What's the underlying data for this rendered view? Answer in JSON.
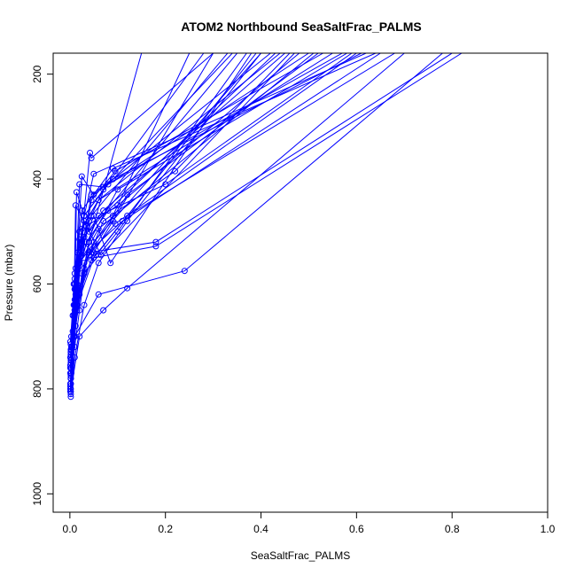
{
  "chart_data": {
    "type": "line",
    "title": "ATOM2 Northbound SeaSaltFrac_PALMS",
    "xlabel": "SeaSaltFrac_PALMS",
    "ylabel": "Pressure (mbar)",
    "xlim": [
      -0.035,
      1.0
    ],
    "ylim": [
      1035,
      160
    ],
    "y_inverted": true,
    "x_ticks": [
      "0.0",
      "0.2",
      "0.4",
      "0.6",
      "0.8",
      "1.0"
    ],
    "y_ticks": [
      "200",
      "400",
      "600",
      "800",
      "1000"
    ],
    "series_color": "#0000ff",
    "grid": false,
    "series": [
      {
        "x": [
          0.002,
          0.01,
          0.03,
          0.06,
          0.12,
          0.4
        ],
        "y": [
          810,
          740,
          640,
          560,
          480,
          160
        ]
      },
      {
        "x": [
          0.002,
          0.01,
          0.02,
          0.04,
          0.15
        ],
        "y": [
          780,
          720,
          650,
          520,
          160
        ]
      },
      {
        "x": [
          0.003,
          0.008,
          0.02,
          0.05,
          0.09,
          0.3
        ],
        "y": [
          760,
          700,
          620,
          540,
          480,
          160
        ]
      },
      {
        "x": [
          0.001,
          0.005,
          0.015,
          0.042,
          0.045,
          0.3
        ],
        "y": [
          800,
          720,
          600,
          350,
          360,
          160
        ]
      },
      {
        "x": [
          0.002,
          0.01,
          0.025,
          0.07,
          0.22,
          0.46
        ],
        "y": [
          790,
          700,
          580,
          480,
          385,
          160
        ]
      },
      {
        "x": [
          0.001,
          0.006,
          0.03,
          0.12,
          0.52
        ],
        "y": [
          805,
          690,
          560,
          430,
          160
        ]
      },
      {
        "x": [
          0.002,
          0.012,
          0.04,
          0.1,
          0.58
        ],
        "y": [
          780,
          650,
          520,
          420,
          160
        ]
      },
      {
        "x": [
          0.003,
          0.015,
          0.03,
          0.05,
          0.62
        ],
        "y": [
          770,
          640,
          470,
          390,
          160
        ]
      },
      {
        "x": [
          0.002,
          0.01,
          0.02,
          0.06,
          0.55
        ],
        "y": [
          750,
          610,
          500,
          440,
          160
        ]
      },
      {
        "x": [
          0.001,
          0.008,
          0.025,
          0.09,
          0.64
        ],
        "y": [
          740,
          600,
          460,
          380,
          160
        ]
      },
      {
        "x": [
          0.002,
          0.01,
          0.03,
          0.08,
          0.5
        ],
        "y": [
          730,
          580,
          470,
          410,
          160
        ]
      },
      {
        "x": [
          0.003,
          0.02,
          0.045,
          0.09,
          0.61
        ],
        "y": [
          725,
          560,
          430,
          400,
          160
        ]
      },
      {
        "x": [
          0.002,
          0.012,
          0.035,
          0.1,
          0.48
        ],
        "y": [
          715,
          570,
          490,
          450,
          160
        ]
      },
      {
        "x": [
          0.001,
          0.01,
          0.03,
          0.07,
          0.45
        ],
        "y": [
          710,
          590,
          510,
          460,
          160
        ]
      },
      {
        "x": [
          0.003,
          0.018,
          0.06,
          0.2,
          0.59
        ],
        "y": [
          700,
          560,
          470,
          410,
          160
        ]
      },
      {
        "x": [
          0.002,
          0.01,
          0.04,
          0.18,
          0.8
        ],
        "y": [
          790,
          650,
          540,
          520,
          160
        ]
      },
      {
        "x": [
          0.002,
          0.015,
          0.05,
          0.18,
          0.82
        ],
        "y": [
          780,
          640,
          550,
          528,
          160
        ]
      },
      {
        "x": [
          0.001,
          0.01,
          0.06,
          0.24,
          0.78
        ],
        "y": [
          795,
          700,
          620,
          575,
          160
        ]
      },
      {
        "x": [
          0.002,
          0.02,
          0.07,
          0.12,
          0.7
        ],
        "y": [
          805,
          700,
          650,
          608,
          160
        ]
      },
      {
        "x": [
          0.003,
          0.01,
          0.02,
          0.11,
          0.65
        ],
        "y": [
          760,
          650,
          555,
          480,
          160
        ]
      },
      {
        "x": [
          0.002,
          0.015,
          0.04,
          0.095,
          0.6
        ],
        "y": [
          740,
          620,
          545,
          485,
          160
        ]
      },
      {
        "x": [
          0.002,
          0.012,
          0.02,
          0.07,
          0.57
        ],
        "y": [
          750,
          610,
          410,
          415,
          160
        ]
      },
      {
        "x": [
          0.001,
          0.01,
          0.025,
          0.05,
          0.42
        ],
        "y": [
          760,
          630,
          395,
          430,
          160
        ]
      },
      {
        "x": [
          0.002,
          0.015,
          0.045,
          0.095,
          0.53
        ],
        "y": [
          735,
          610,
          440,
          385,
          160
        ]
      },
      {
        "x": [
          0.003,
          0.02,
          0.05,
          0.085,
          0.38
        ],
        "y": [
          720,
          540,
          470,
          560,
          160
        ]
      },
      {
        "x": [
          0.002,
          0.01,
          0.03,
          0.065,
          0.47
        ],
        "y": [
          745,
          600,
          480,
          545,
          160
        ]
      },
      {
        "x": [
          0.001,
          0.008,
          0.012,
          0.04,
          0.35
        ],
        "y": [
          770,
          660,
          450,
          500,
          160
        ]
      },
      {
        "x": [
          0.002,
          0.01,
          0.014,
          0.03,
          0.28
        ],
        "y": [
          780,
          640,
          425,
          470,
          160
        ]
      },
      {
        "x": [
          0.003,
          0.012,
          0.025,
          0.06,
          0.44
        ],
        "y": [
          760,
          620,
          495,
          440,
          160
        ]
      },
      {
        "x": [
          0.002,
          0.008,
          0.02,
          0.055,
          0.39
        ],
        "y": [
          775,
          640,
          515,
          545,
          160
        ]
      },
      {
        "x": [
          0.001,
          0.006,
          0.016,
          0.045,
          0.33
        ],
        "y": [
          790,
          660,
          540,
          470,
          160
        ]
      },
      {
        "x": [
          0.002,
          0.01,
          0.02,
          0.09,
          0.25
        ],
        "y": [
          800,
          700,
          560,
          470,
          160
        ]
      },
      {
        "x": [
          0.002,
          0.012,
          0.03,
          0.1,
          0.37
        ],
        "y": [
          815,
          680,
          580,
          500,
          160
        ]
      },
      {
        "x": [
          0.003,
          0.015,
          0.045,
          0.12,
          0.68
        ],
        "y": [
          745,
          620,
          555,
          470,
          160
        ]
      },
      {
        "x": [
          0.002,
          0.01,
          0.035,
          0.08,
          0.43
        ],
        "y": [
          730,
          610,
          520,
          460,
          160
        ]
      },
      {
        "x": [
          0.001,
          0.009,
          0.02,
          0.06,
          0.51
        ],
        "y": [
          755,
          640,
          560,
          495,
          160
        ]
      },
      {
        "x": [
          0.002,
          0.01,
          0.04,
          0.07,
          0.34
        ],
        "y": [
          725,
          600,
          480,
          420,
          160
        ]
      },
      {
        "x": [
          0.002,
          0.015,
          0.03,
          0.05,
          0.4
        ],
        "y": [
          735,
          650,
          570,
          520,
          160
        ]
      }
    ]
  }
}
